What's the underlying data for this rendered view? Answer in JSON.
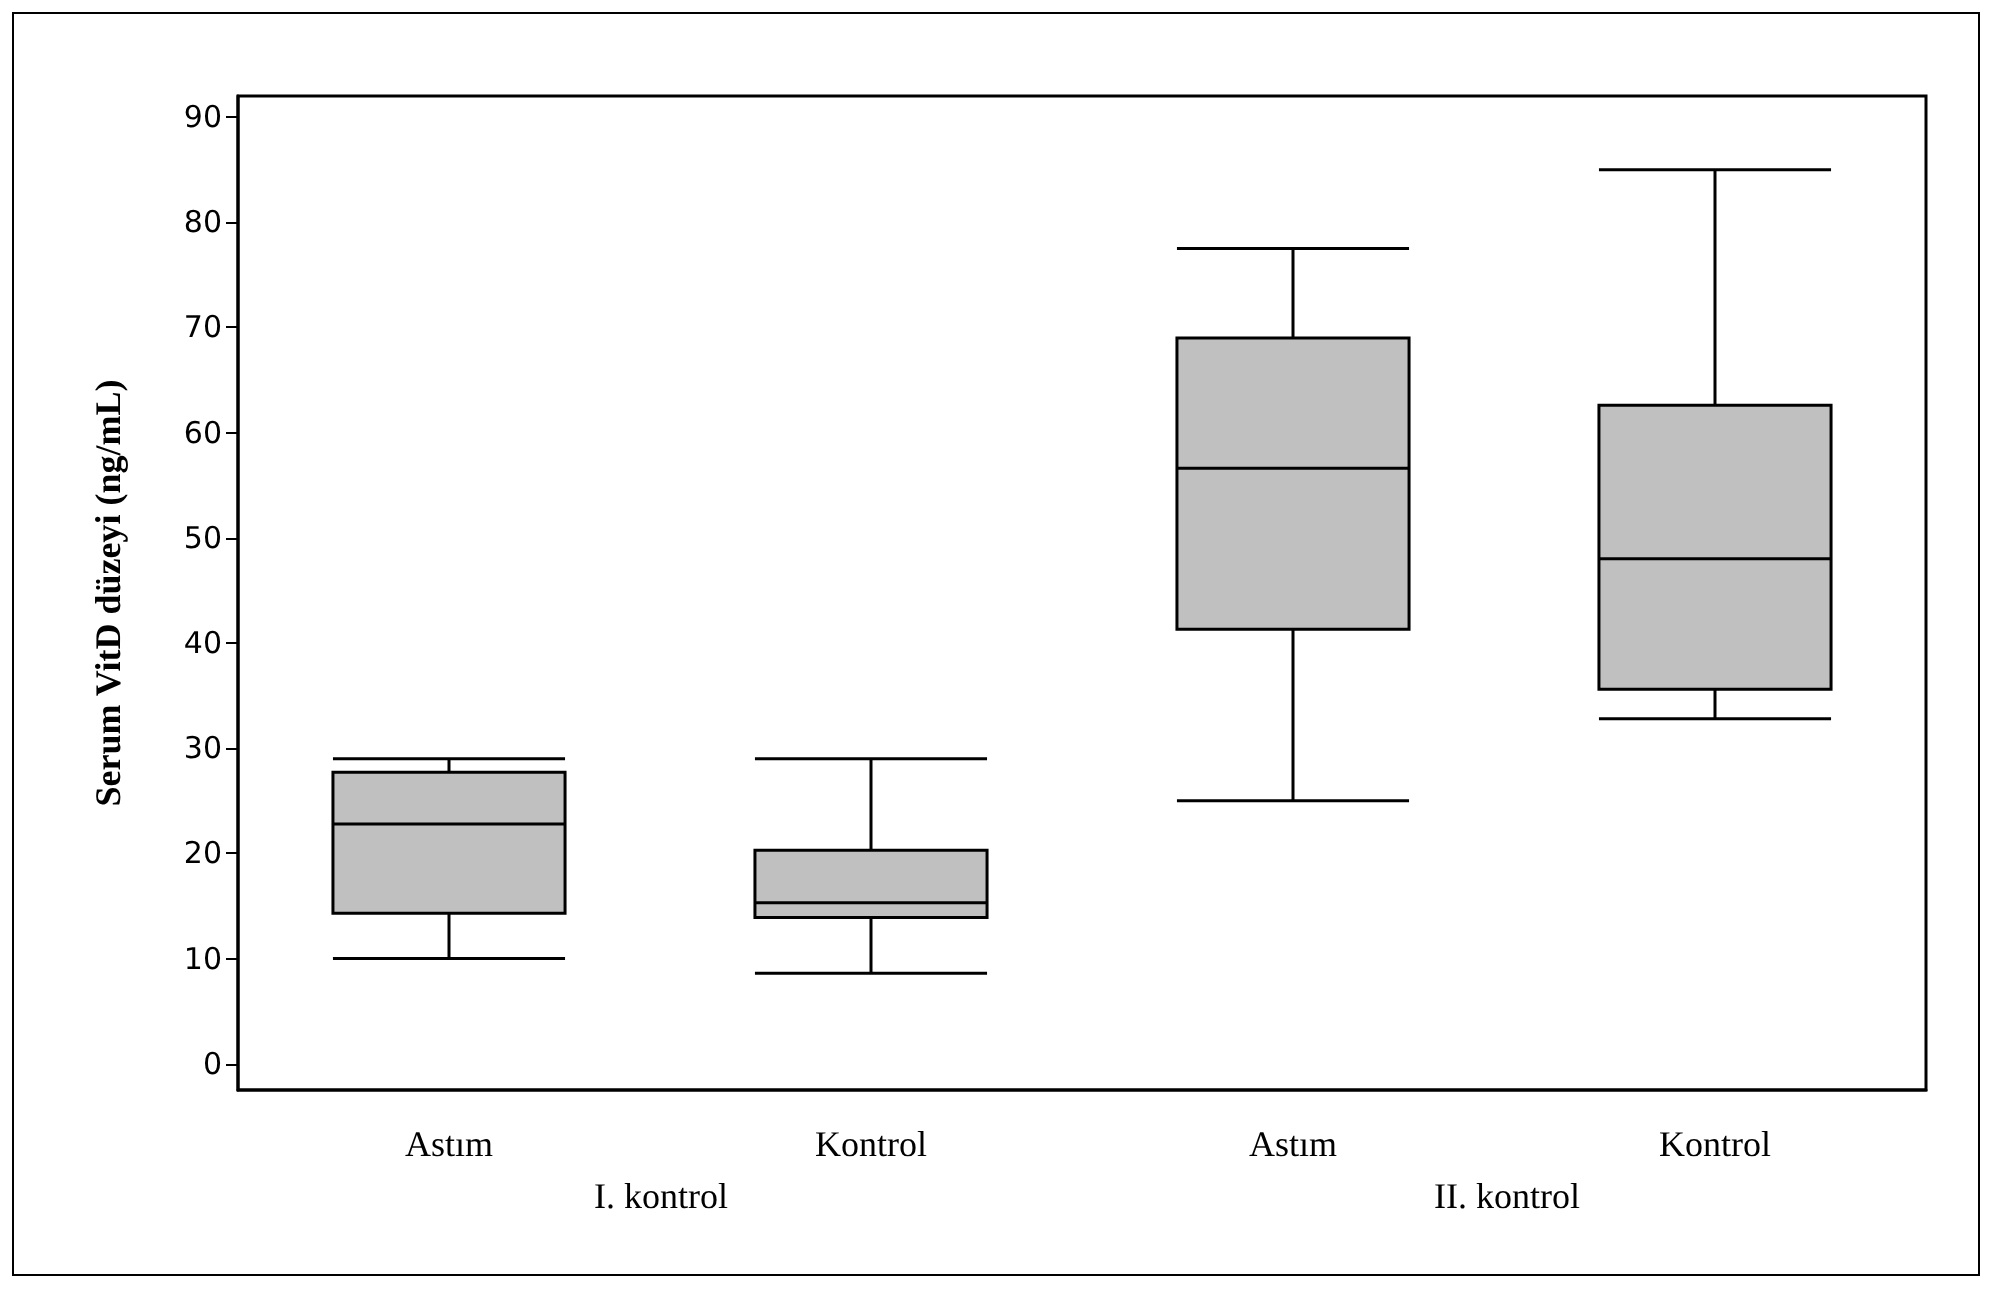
{
  "chart_data": {
    "type": "box",
    "ylabel": "Serum VitD düzeyi (ng/mL)",
    "categories": [
      "Astım",
      "Kontrol",
      "Astım",
      "Kontrol"
    ],
    "annotations": [
      "I. kontrol",
      "II. kontrol"
    ],
    "color": "#c0c0c0",
    "boxes": [
      {
        "low": 10,
        "q1": 14.3,
        "median": 22.8,
        "q3": 27.7,
        "high": 29
      },
      {
        "low": 8.6,
        "q1": 13.9,
        "median": 15.3,
        "q3": 20.3,
        "high": 29
      },
      {
        "low": 25,
        "q1": 41.3,
        "median": 56.6,
        "q3": 69,
        "high": 77.5
      },
      {
        "low": 32.8,
        "q1": 35.6,
        "median": 48,
        "q3": 62.6,
        "high": 85
      }
    ],
    "ylim": [
      -2.5,
      92
    ],
    "yticks": [
      0,
      10,
      20,
      30,
      40,
      50,
      60,
      70,
      80,
      90
    ]
  }
}
